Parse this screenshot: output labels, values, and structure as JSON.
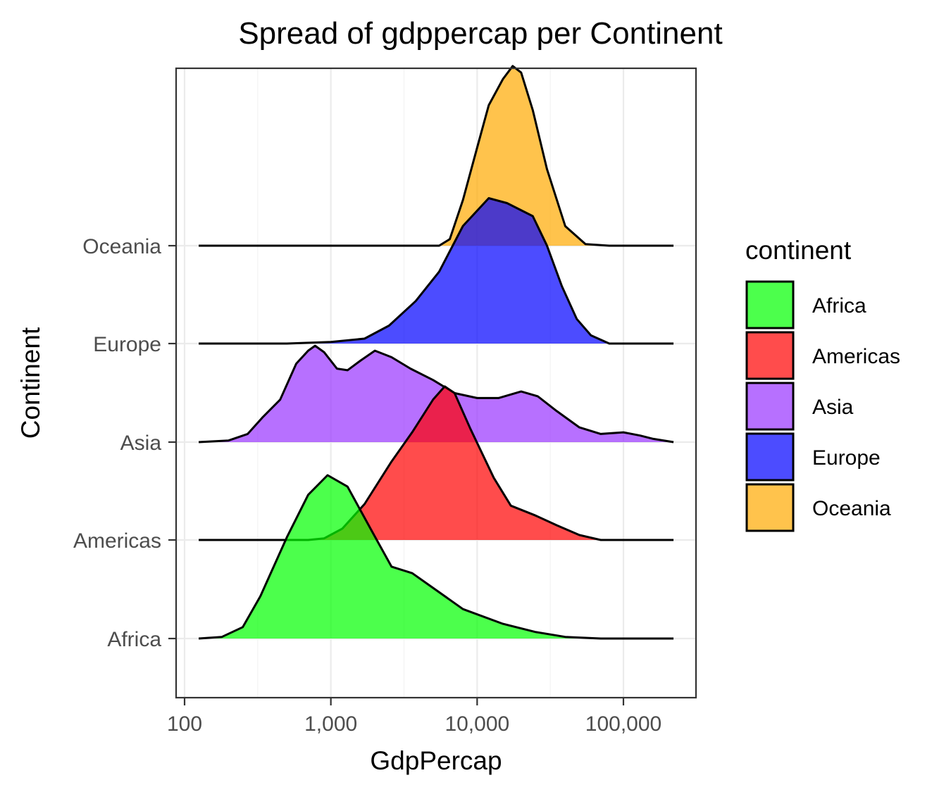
{
  "chart_data": {
    "type": "ridgeline",
    "title": "Spread of gdppercap per Continent",
    "xlabel": "GdpPercap",
    "ylabel": "Continent",
    "x_scale": "log10",
    "xlim": [
      100,
      300000
    ],
    "x_ticks": [
      100,
      1000,
      10000,
      100000
    ],
    "x_tick_labels": [
      "100",
      "1,000",
      "10,000",
      "100,000"
    ],
    "categories": [
      "Africa",
      "Americas",
      "Asia",
      "Europe",
      "Oceania"
    ],
    "grid": true,
    "legend": {
      "title": "continent",
      "position": "right"
    },
    "series": [
      {
        "name": "Africa",
        "color": "#00FF00",
        "density": [
          [
            125,
            0
          ],
          [
            180,
            0.01
          ],
          [
            250,
            0.07
          ],
          [
            330,
            0.26
          ],
          [
            500,
            0.62
          ],
          [
            700,
            0.88
          ],
          [
            950,
            1
          ],
          [
            1300,
            0.93
          ],
          [
            1900,
            0.66
          ],
          [
            2600,
            0.44
          ],
          [
            3600,
            0.4
          ],
          [
            5000,
            0.31
          ],
          [
            8000,
            0.18
          ],
          [
            15000,
            0.09
          ],
          [
            25000,
            0.04
          ],
          [
            40000,
            0.01
          ],
          [
            70000,
            0
          ],
          [
            220000,
            0
          ]
        ]
      },
      {
        "name": "Americas",
        "color": "#FF0000",
        "density": [
          [
            125,
            0
          ],
          [
            700,
            0
          ],
          [
            900,
            0.01
          ],
          [
            1200,
            0.07
          ],
          [
            1700,
            0.22
          ],
          [
            2600,
            0.48
          ],
          [
            3600,
            0.66
          ],
          [
            5000,
            0.86
          ],
          [
            6000,
            0.94
          ],
          [
            7000,
            0.9
          ],
          [
            9000,
            0.68
          ],
          [
            13000,
            0.38
          ],
          [
            17000,
            0.21
          ],
          [
            25000,
            0.15
          ],
          [
            35000,
            0.09
          ],
          [
            50000,
            0.03
          ],
          [
            70000,
            0
          ],
          [
            220000,
            0
          ]
        ]
      },
      {
        "name": "Asia",
        "color": "#9933FF",
        "density": [
          [
            125,
            0
          ],
          [
            200,
            0.01
          ],
          [
            270,
            0.05
          ],
          [
            340,
            0.15
          ],
          [
            450,
            0.26
          ],
          [
            580,
            0.48
          ],
          [
            700,
            0.56
          ],
          [
            780,
            0.59
          ],
          [
            900,
            0.55
          ],
          [
            1100,
            0.45
          ],
          [
            1300,
            0.44
          ],
          [
            1600,
            0.5
          ],
          [
            2000,
            0.56
          ],
          [
            2600,
            0.52
          ],
          [
            3500,
            0.45
          ],
          [
            5000,
            0.38
          ],
          [
            7000,
            0.3
          ],
          [
            10000,
            0.27
          ],
          [
            14000,
            0.27
          ],
          [
            20000,
            0.31
          ],
          [
            26000,
            0.28
          ],
          [
            35000,
            0.19
          ],
          [
            50000,
            0.09
          ],
          [
            70000,
            0.05
          ],
          [
            100000,
            0.06
          ],
          [
            130000,
            0.04
          ],
          [
            160000,
            0.02
          ],
          [
            220000,
            0
          ]
        ]
      },
      {
        "name": "Europe",
        "color": "#0000FF",
        "density": [
          [
            125,
            0
          ],
          [
            500,
            0
          ],
          [
            1000,
            0.01
          ],
          [
            1700,
            0.03
          ],
          [
            2500,
            0.11
          ],
          [
            3800,
            0.26
          ],
          [
            5500,
            0.44
          ],
          [
            8000,
            0.72
          ],
          [
            12000,
            0.89
          ],
          [
            16000,
            0.86
          ],
          [
            24000,
            0.78
          ],
          [
            30000,
            0.6
          ],
          [
            38000,
            0.35
          ],
          [
            48000,
            0.15
          ],
          [
            60000,
            0.05
          ],
          [
            80000,
            0
          ],
          [
            220000,
            0
          ]
        ]
      },
      {
        "name": "Oceania",
        "color": "#FFAA00",
        "density": [
          [
            125,
            0
          ],
          [
            5500,
            0
          ],
          [
            6500,
            0.04
          ],
          [
            8000,
            0.28
          ],
          [
            10000,
            0.6
          ],
          [
            12000,
            0.86
          ],
          [
            15000,
            1.02
          ],
          [
            17500,
            1.1
          ],
          [
            20000,
            1.06
          ],
          [
            24000,
            0.83
          ],
          [
            30000,
            0.47
          ],
          [
            40000,
            0.12
          ],
          [
            55000,
            0.01
          ],
          [
            80000,
            0
          ],
          [
            220000,
            0
          ]
        ]
      }
    ]
  }
}
